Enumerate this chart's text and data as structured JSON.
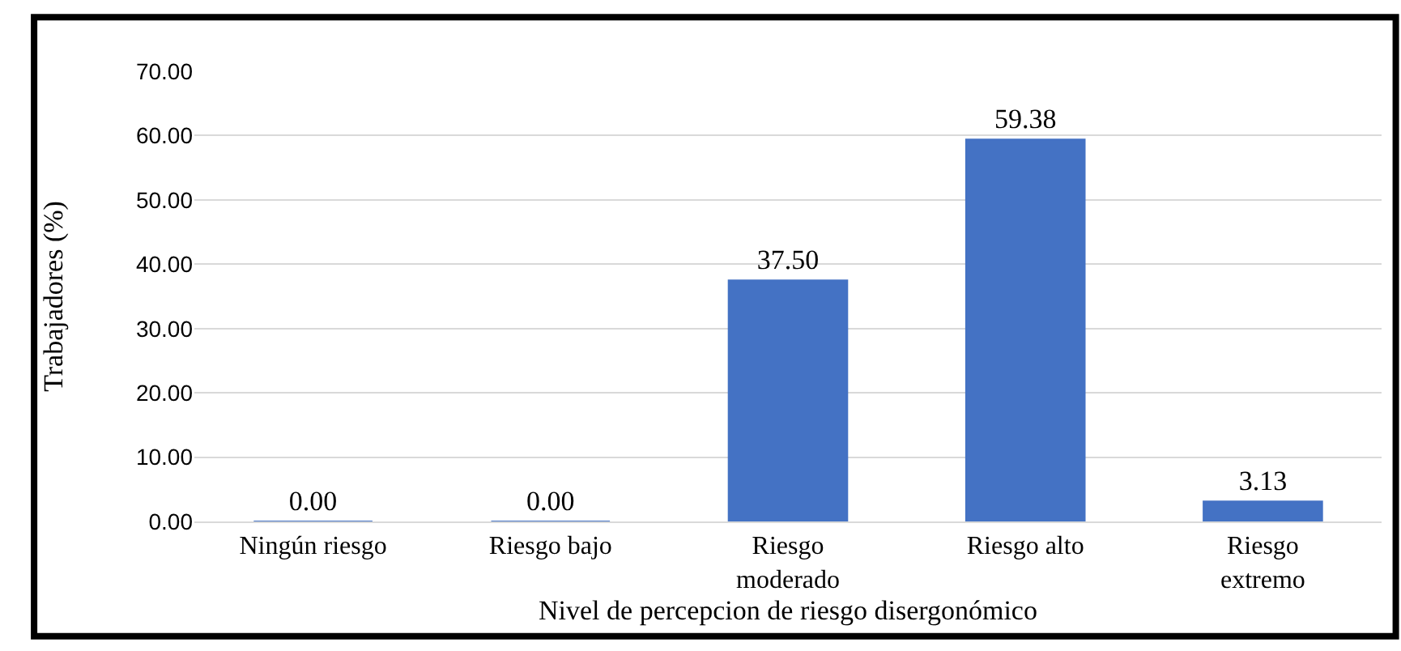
{
  "chart_data": {
    "type": "bar",
    "categories": [
      "Ningún riesgo",
      "Riesgo bajo",
      "Riesgo\nmoderado",
      "Riesgo alto",
      "Riesgo\nextremo"
    ],
    "values": [
      0.0,
      0.0,
      37.5,
      59.38,
      3.13
    ],
    "value_labels": [
      "0.00",
      "0.00",
      "37.50",
      "59.38",
      "3.13"
    ],
    "color": "#4472c4",
    "xlabel": "Nivel de percepcion de riesgo disergonómico",
    "ylabel": "Trabajadores (%)",
    "ylim": [
      0,
      70
    ],
    "yticks": [
      {
        "value": 0,
        "label": "0.00"
      },
      {
        "value": 10,
        "label": "10.00"
      },
      {
        "value": 20,
        "label": "20.00"
      },
      {
        "value": 30,
        "label": "30.00"
      },
      {
        "value": 40,
        "label": "40.00"
      },
      {
        "value": 50,
        "label": "50.00"
      },
      {
        "value": 60,
        "label": "60.00"
      },
      {
        "value": 70,
        "label": "70.00"
      }
    ],
    "grid": "y",
    "legend": false
  }
}
